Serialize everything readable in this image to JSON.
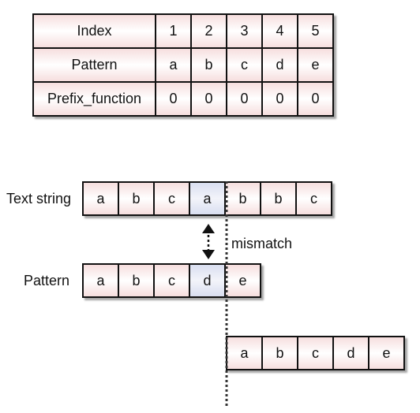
{
  "prefix_table": {
    "rows": [
      {
        "label": "Index",
        "cells": [
          "1",
          "2",
          "3",
          "4",
          "5"
        ]
      },
      {
        "label": "Pattern",
        "cells": [
          "a",
          "b",
          "c",
          "d",
          "e"
        ]
      },
      {
        "label": "Prefix_function",
        "cells": [
          "0",
          "0",
          "0",
          "0",
          "0"
        ]
      }
    ]
  },
  "text_string": {
    "label": "Text string",
    "chars": [
      "a",
      "b",
      "c",
      "a",
      "b",
      "b",
      "c"
    ]
  },
  "pattern": {
    "label": "Pattern",
    "chars": [
      "a",
      "b",
      "c",
      "d",
      "e"
    ]
  },
  "shifted_pattern": {
    "chars": [
      "a",
      "b",
      "c",
      "d",
      "e"
    ]
  },
  "mismatch_label": "mismatch",
  "colors": {
    "cell_fill": "#f6dede",
    "highlight_fill": "#d9def0"
  }
}
